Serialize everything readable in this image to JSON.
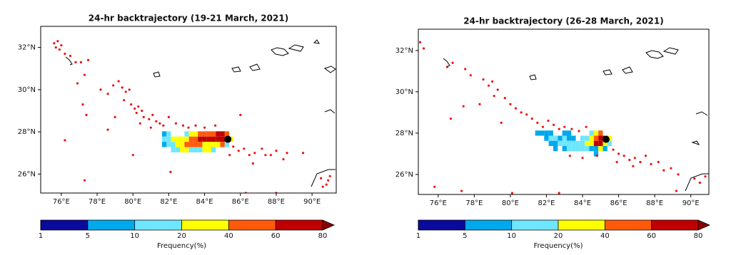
{
  "chart_data": [
    {
      "type": "map",
      "title": "24-hr backtrajectory (19-21 March, 2021)",
      "xlim": [
        74.85,
        91.35
      ],
      "ylim": [
        25.1,
        33.0
      ],
      "xticks": [
        {
          "value": 76,
          "label": "76°E"
        },
        {
          "value": 78,
          "label": "78°E"
        },
        {
          "value": 80,
          "label": "80°E"
        },
        {
          "value": 82,
          "label": "82°E"
        },
        {
          "value": 84,
          "label": "84°E"
        },
        {
          "value": 86,
          "label": "86°E"
        },
        {
          "value": 88,
          "label": "88°E"
        },
        {
          "value": 90,
          "label": "90°E"
        }
      ],
      "yticks": [
        {
          "value": 26,
          "label": "26°N"
        },
        {
          "value": 28,
          "label": "28°N"
        },
        {
          "value": 30,
          "label": "30°N"
        },
        {
          "value": 32,
          "label": "32°N"
        }
      ],
      "points": {
        "color": "#ee1111",
        "x": [
          75.6,
          75.8,
          75.7,
          76.0,
          75.9,
          76.2,
          76.5,
          76.8,
          77.1,
          77.3,
          77.5,
          76.9,
          77.2,
          77.4,
          78.2,
          78.6,
          78.9,
          79.2,
          79.4,
          79.6,
          79.8,
          79.5,
          79.9,
          80.1,
          80.3,
          80.5,
          80.2,
          80.6,
          80.9,
          81.1,
          81.3,
          81.5,
          81.7,
          81.0,
          80.4,
          79.0,
          78.6,
          76.2,
          77.3,
          80.0,
          82.1,
          82.0,
          82.4,
          82.8,
          83.1,
          83.5,
          84.0,
          84.6,
          85.6,
          85.9,
          86.2,
          86.5,
          86.8,
          87.2,
          87.4,
          87.7,
          88.0,
          88.4,
          88.6,
          89.5,
          86.0,
          86.3,
          88.0,
          90.5,
          90.8,
          91.0,
          90.6,
          90.9,
          85.4,
          86.7
        ],
        "y": [
          32.2,
          32.3,
          32.0,
          32.1,
          31.9,
          31.7,
          31.6,
          31.3,
          31.3,
          30.7,
          31.4,
          30.3,
          29.3,
          28.8,
          30.0,
          29.8,
          30.2,
          30.4,
          30.1,
          29.9,
          30.0,
          29.5,
          29.3,
          29.1,
          29.2,
          29.0,
          28.9,
          28.7,
          28.6,
          28.8,
          28.5,
          28.4,
          28.3,
          28.2,
          28.4,
          28.7,
          28.1,
          27.6,
          25.7,
          26.9,
          26.1,
          28.7,
          28.4,
          28.3,
          28.2,
          28.3,
          28.2,
          28.3,
          27.3,
          27.1,
          27.2,
          26.9,
          27.0,
          27.2,
          26.9,
          26.9,
          27.1,
          26.7,
          27.0,
          27.0,
          28.8,
          25.1,
          25.1,
          25.8,
          25.5,
          25.9,
          25.4,
          25.7,
          26.9,
          26.5
        ]
      },
      "cells": {
        "size": 0.25,
        "x": [
          81.75,
          82.0,
          83.0,
          83.25,
          83.5,
          83.75,
          84.0,
          84.25,
          84.5,
          84.75,
          85.0,
          85.25,
          81.75,
          82.0,
          82.25,
          82.5,
          82.75,
          83.0,
          83.25,
          83.5,
          83.75,
          84.0,
          84.25,
          84.5,
          84.75,
          85.0,
          85.25,
          85.5,
          81.75,
          82.0,
          82.25,
          82.5,
          82.75,
          83.0,
          83.25,
          83.5,
          83.75,
          84.0,
          84.25,
          84.5,
          84.75,
          85.0,
          85.25,
          82.25,
          82.5,
          82.75,
          83.0,
          83.25,
          83.5,
          83.75,
          84.0,
          84.25,
          84.5
        ],
        "y": [
          27.9,
          27.9,
          27.9,
          27.9,
          27.9,
          27.9,
          27.9,
          27.9,
          27.9,
          27.9,
          27.9,
          27.9,
          27.65,
          27.65,
          27.65,
          27.65,
          27.65,
          27.65,
          27.65,
          27.65,
          27.65,
          27.65,
          27.65,
          27.65,
          27.65,
          27.65,
          27.65,
          27.65,
          27.4,
          27.4,
          27.4,
          27.4,
          27.4,
          27.4,
          27.4,
          27.4,
          27.4,
          27.4,
          27.4,
          27.4,
          27.4,
          27.4,
          27.4,
          27.15,
          27.15,
          27.15,
          27.15,
          27.15,
          27.15,
          27.15,
          27.15,
          27.15,
          27.15
        ],
        "values": [
          7,
          15,
          15,
          30,
          30,
          50,
          50,
          50,
          50,
          70,
          70,
          50,
          15,
          15,
          30,
          30,
          30,
          30,
          50,
          50,
          70,
          70,
          70,
          70,
          70,
          70,
          70,
          30,
          7,
          15,
          15,
          30,
          30,
          50,
          50,
          50,
          50,
          30,
          30,
          30,
          30,
          50,
          15,
          15,
          15,
          30,
          30,
          15,
          15,
          15,
          30,
          30,
          15
        ]
      },
      "source": {
        "x": 85.3,
        "y": 27.65
      },
      "colorbar": {
        "bounds": [
          1,
          5,
          10,
          20,
          40,
          60,
          80
        ],
        "colors": [
          "#0a0a9c",
          "#00a8ec",
          "#6fe6ff",
          "#ffff00",
          "#ff5a0a",
          "#c00000",
          "#8a0000"
        ],
        "label": "Frequency(%)"
      }
    },
    {
      "type": "map",
      "title": "24-hr backtrajectory (26-28 March, 2021)",
      "xlim": [
        74.9,
        91.0
      ],
      "ylim": [
        25.03,
        33.03
      ],
      "xticks": [
        {
          "value": 76,
          "label": "76°E"
        },
        {
          "value": 78,
          "label": "78°E"
        },
        {
          "value": 80,
          "label": "80°E"
        },
        {
          "value": 82,
          "label": "82°E"
        },
        {
          "value": 84,
          "label": "84°E"
        },
        {
          "value": 86,
          "label": "86°E"
        },
        {
          "value": 88,
          "label": "88°E"
        },
        {
          "value": 90,
          "label": "90°E"
        }
      ],
      "yticks": [
        {
          "value": 26,
          "label": "26°N"
        },
        {
          "value": 28,
          "label": "28°N"
        },
        {
          "value": 30,
          "label": "30°N"
        },
        {
          "value": 32,
          "label": "32°N"
        }
      ],
      "points": {
        "color": "#ee1111",
        "x": [
          75.0,
          75.2,
          76.8,
          76.5,
          77.5,
          77.8,
          78.5,
          78.8,
          79.0,
          79.3,
          79.1,
          79.7,
          80.0,
          80.3,
          80.6,
          80.9,
          81.2,
          81.5,
          81.8,
          82.1,
          82.4,
          82.7,
          83.0,
          83.4,
          83.8,
          84.2,
          79.5,
          78.3,
          77.4,
          76.7,
          75.8,
          77.3,
          80.1,
          85.7,
          86.0,
          86.3,
          86.6,
          86.9,
          87.2,
          87.5,
          87.8,
          88.2,
          88.5,
          88.9,
          89.3,
          85.9,
          86.8,
          89.2,
          90.2,
          90.5,
          90.8,
          84.0,
          84.8,
          83.3,
          82.7
        ],
        "y": [
          32.4,
          32.1,
          31.4,
          31.2,
          31.1,
          30.8,
          30.6,
          30.3,
          30.5,
          30.1,
          29.8,
          29.7,
          29.4,
          29.2,
          29.0,
          28.9,
          28.7,
          28.5,
          28.3,
          28.6,
          28.4,
          28.2,
          28.3,
          28.2,
          28.1,
          28.3,
          28.5,
          29.4,
          29.3,
          28.7,
          25.4,
          25.2,
          25.1,
          27.2,
          27.0,
          26.9,
          26.7,
          26.8,
          26.6,
          26.9,
          26.5,
          26.6,
          26.2,
          26.3,
          26.0,
          26.6,
          26.4,
          25.2,
          25.8,
          25.6,
          25.9,
          26.8,
          26.9,
          26.9,
          25.1
        ]
      },
      "cells": {
        "size": 0.25,
        "x": [
          81.5,
          81.75,
          82.0,
          82.25,
          83.0,
          83.25,
          84.5,
          84.75,
          85.0,
          82.0,
          82.25,
          82.5,
          82.75,
          83.0,
          83.25,
          83.5,
          84.0,
          84.25,
          84.5,
          84.75,
          85.0,
          85.25,
          85.5,
          82.25,
          82.5,
          82.75,
          83.0,
          83.25,
          83.5,
          83.75,
          84.0,
          84.25,
          84.5,
          84.75,
          85.0,
          85.25,
          85.5,
          82.5,
          83.0,
          83.25,
          83.5,
          83.75,
          84.0,
          84.25,
          84.5,
          84.75,
          85.0,
          85.25,
          84.75
        ],
        "y": [
          28.0,
          28.0,
          28.0,
          28.0,
          28.0,
          28.0,
          28.0,
          28.0,
          28.0,
          27.75,
          27.75,
          27.75,
          27.75,
          27.75,
          27.75,
          27.75,
          27.75,
          27.75,
          27.75,
          27.75,
          27.75,
          27.75,
          27.75,
          27.5,
          27.5,
          27.5,
          27.5,
          27.5,
          27.5,
          27.5,
          27.5,
          27.5,
          27.5,
          27.5,
          27.5,
          27.5,
          27.5,
          27.25,
          27.25,
          27.25,
          27.25,
          27.25,
          27.25,
          27.25,
          27.25,
          27.25,
          27.25,
          27.25,
          27.0
        ],
        "values": [
          7,
          7,
          7,
          7,
          7,
          7,
          15,
          30,
          50,
          7,
          15,
          15,
          7,
          15,
          7,
          7,
          15,
          15,
          30,
          50,
          70,
          70,
          30,
          7,
          7,
          15,
          15,
          15,
          15,
          15,
          15,
          30,
          30,
          70,
          70,
          30,
          15,
          7,
          7,
          15,
          15,
          15,
          15,
          15,
          7,
          7,
          30,
          7,
          7
        ]
      },
      "source": {
        "x": 85.3,
        "y": 27.7
      },
      "colorbar": {
        "bounds": [
          1,
          5,
          10,
          20,
          40,
          60,
          80
        ],
        "colors": [
          "#0a0a9c",
          "#00a8ec",
          "#6fe6ff",
          "#ffff00",
          "#ff5a0a",
          "#c00000",
          "#8a0000"
        ],
        "label": "Frequency(%)"
      }
    }
  ]
}
